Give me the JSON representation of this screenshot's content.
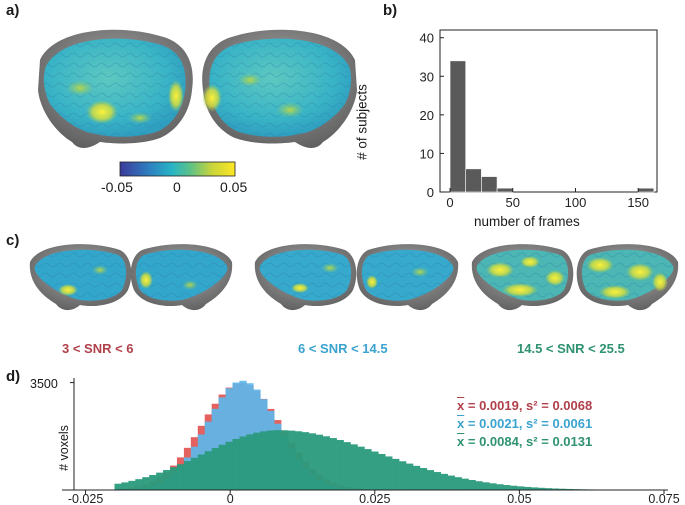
{
  "panels": {
    "a": "a)",
    "b": "b)",
    "c": "c)",
    "d": "d)"
  },
  "colorbar": {
    "ticks": [
      "-0.05",
      "0",
      "0.05"
    ],
    "colors": [
      "#3b3a9a",
      "#2e7fc0",
      "#27b4c6",
      "#58c08c",
      "#c8d43a",
      "#fde725"
    ]
  },
  "snr_labels": [
    {
      "text": "3 < SNR < 6",
      "color": "#b0404a"
    },
    {
      "text": "6 < SNR < 14.5",
      "color": "#3aa3cf"
    },
    {
      "text": "14.5 < SNR < 25.5",
      "color": "#2f9270"
    }
  ],
  "stats": [
    {
      "mean": "0.0019",
      "var": "0.0068",
      "color": "#b0404a"
    },
    {
      "mean": "0.0021",
      "var": "0.0061",
      "color": "#3aa3cf"
    },
    {
      "mean": "0.0084",
      "var": "0.0131",
      "color": "#2f9270"
    }
  ],
  "chart_data": [
    {
      "type": "bar",
      "title": "",
      "xlabel": "number of frames",
      "ylabel": "# of subjects",
      "bins": [
        [
          0,
          12.5
        ],
        [
          12.5,
          25
        ],
        [
          25,
          37.5
        ],
        [
          37.5,
          50
        ],
        [
          150,
          162.5
        ]
      ],
      "values": [
        34,
        6,
        4,
        1,
        1
      ],
      "xticks": [
        "0",
        "50",
        "100",
        "150"
      ],
      "xtick_values": [
        0,
        50,
        100,
        150
      ],
      "yticks": [
        "0",
        "10",
        "20",
        "30",
        "40"
      ],
      "ytick_values": [
        0,
        10,
        20,
        30,
        40
      ],
      "xlim": [
        -8,
        165
      ],
      "ylim": [
        0,
        42
      ],
      "bar_color": "#5a5a5a"
    },
    {
      "type": "bar",
      "title": "",
      "xlabel": "",
      "ylabel": "# voxels",
      "ytick_labels": [
        "3500"
      ],
      "ytick_values": [
        3500
      ],
      "xticks": [
        "-0.025",
        "0",
        "0.025",
        "0.05",
        "0.075"
      ],
      "xtick_values": [
        -0.025,
        0,
        0.025,
        0.05,
        0.075
      ],
      "xlim": [
        -0.027,
        0.075
      ],
      "ylim": [
        0,
        3650
      ],
      "series": [
        {
          "name": "3 < SNR < 6",
          "color": "#e0504e",
          "mean": 0.0019,
          "sd": 0.0068,
          "peak": 3500
        },
        {
          "name": "6 < SNR < 14.5",
          "color": "#5ab9ef",
          "mean": 0.0021,
          "sd": 0.0061,
          "peak": 3560
        },
        {
          "name": "14.5 < SNR < 25.5",
          "color": "#2a9a7c",
          "mean": 0.0084,
          "sd": 0.0131,
          "peak": 1950
        }
      ]
    }
  ]
}
